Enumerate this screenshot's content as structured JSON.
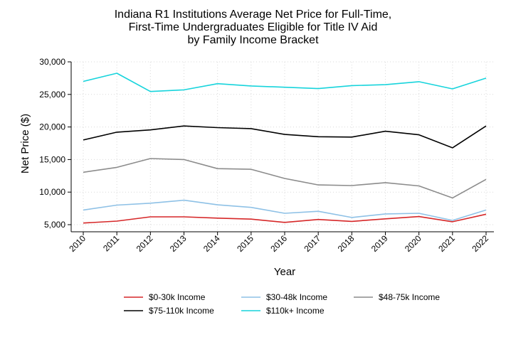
{
  "chart_data": {
    "type": "line",
    "title": [
      "Indiana R1 Institutions Average Net Price for Full-Time,",
      "First-Time Undergraduates Eligible for Title IV Aid",
      "by Family Income Bracket"
    ],
    "xlabel": "Year",
    "ylabel": "Net Price ($)",
    "x": [
      "2010",
      "2011",
      "2012",
      "2013",
      "2014",
      "2015",
      "2016",
      "2017",
      "2018",
      "2019",
      "2020",
      "2021",
      "2022"
    ],
    "ylim": [
      5000,
      30000
    ],
    "yticks": [
      5000,
      10000,
      15000,
      20000,
      25000,
      30000
    ],
    "ytick_labels": [
      "5,000",
      "10,000",
      "15,000",
      "20,000",
      "25,000",
      "30,000"
    ],
    "grid": true,
    "legend_position": "bottom",
    "series": [
      {
        "name": "$0-30k Income",
        "color": "#d62728",
        "values": [
          5250,
          5550,
          6200,
          6200,
          6000,
          5850,
          5350,
          5800,
          5500,
          5900,
          6250,
          5450,
          6600
        ]
      },
      {
        "name": "$30-48k Income",
        "color": "#8ec1e6",
        "values": [
          7250,
          8000,
          8300,
          8750,
          8050,
          7650,
          6750,
          7050,
          6100,
          6650,
          6750,
          5650,
          7250
        ]
      },
      {
        "name": "$48-75k Income",
        "color": "#8c8c8c",
        "values": [
          13050,
          13800,
          15150,
          15000,
          13600,
          13500,
          12100,
          11100,
          11000,
          11450,
          10950,
          9100,
          11950
        ]
      },
      {
        "name": "$75-110k Income",
        "color": "#000000",
        "values": [
          18000,
          19200,
          19550,
          20150,
          19900,
          19750,
          18850,
          18500,
          18450,
          19350,
          18800,
          16800,
          20150
        ]
      },
      {
        "name": "$110k+ Income",
        "color": "#17d4dc",
        "values": [
          27000,
          28250,
          25450,
          25700,
          26650,
          26300,
          26100,
          25900,
          26350,
          26500,
          26950,
          25850,
          27500
        ]
      }
    ]
  }
}
